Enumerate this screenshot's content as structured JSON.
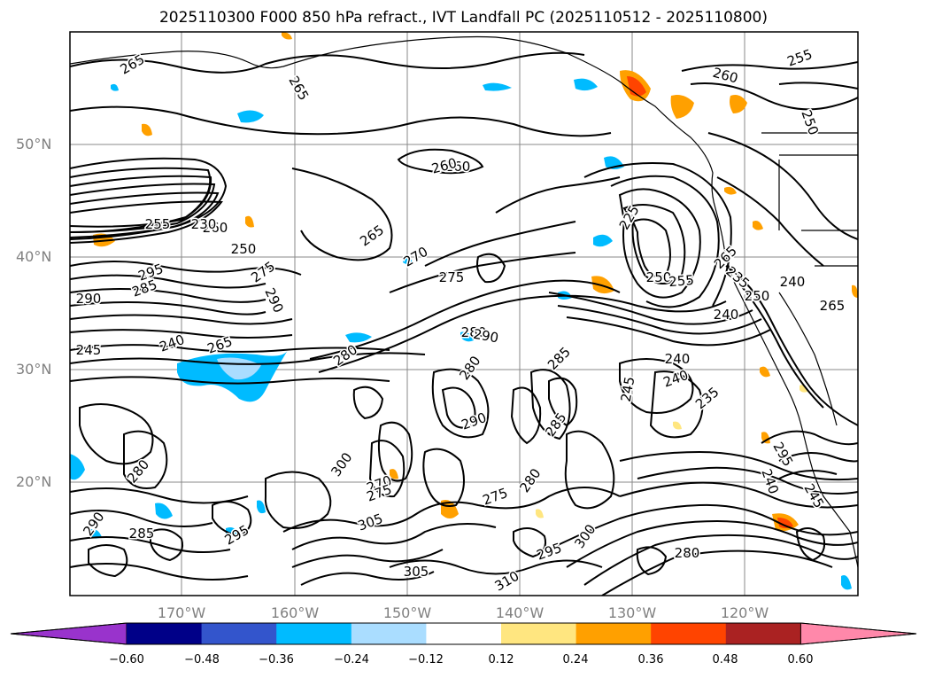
{
  "title": "2025110300 F000 850 hPa refract., IVT Landfall PC (2025110512 - 2025110800)",
  "map": {
    "latitude_labels": [
      "50°N",
      "40°N",
      "30°N",
      "20°N"
    ],
    "longitude_labels": [
      "170°W",
      "160°W",
      "150°W",
      "140°W",
      "130°W",
      "120°W"
    ],
    "contour_labels": [
      "265",
      "265",
      "260",
      "260",
      "255",
      "250",
      "260",
      "265",
      "265",
      "270",
      "275",
      "280",
      "295",
      "285",
      "290",
      "245",
      "240",
      "265",
      "275",
      "280",
      "290",
      "290",
      "280",
      "285",
      "285",
      "290",
      "280",
      "300",
      "305",
      "305",
      "310",
      "295",
      "280",
      "235",
      "240",
      "240",
      "245",
      "235",
      "240",
      "250",
      "245",
      "270",
      "275",
      "295",
      "290",
      "285",
      "300",
      "275",
      "280",
      "260",
      "295",
      "225",
      "250",
      "255",
      "240",
      "265",
      "240",
      "255",
      "230",
      "250"
    ],
    "contour_color": "#000000",
    "coastline_color": "#000000",
    "grid_color": "#888888"
  },
  "colorbar": {
    "colors": [
      "#9933cc",
      "#000088",
      "#3355cc",
      "#00bbff",
      "#aaddff",
      "#ffffff",
      "#ffe680",
      "#ffa000",
      "#ff4400",
      "#aa2222",
      "#ff88aa"
    ],
    "tick_labels": [
      "−0.60",
      "−0.48",
      "−0.36",
      "−0.24",
      "−0.12",
      "0.12",
      "0.24",
      "0.36",
      "0.48",
      "0.60"
    ]
  }
}
